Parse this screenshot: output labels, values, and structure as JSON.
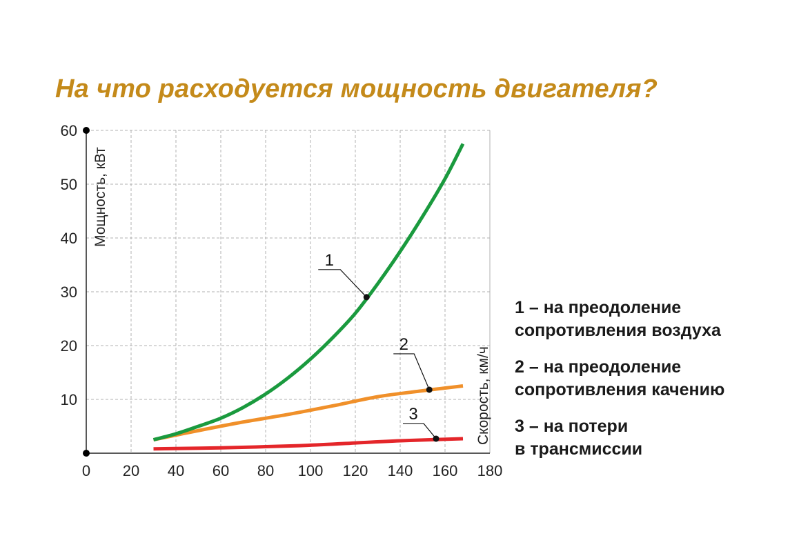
{
  "title": "На что расходуется мощность двигателя?",
  "colors": {
    "title": "#c48a1a",
    "curve_1": "#1a9a3e",
    "curve_2": "#f0902a",
    "curve_3": "#e4262a",
    "grid": "#b0b0b0",
    "axis": "#222222"
  },
  "chart_data": {
    "type": "line",
    "title": "",
    "xlabel": "Скорость, км/ч",
    "ylabel": "Мощность, кВт",
    "xlim": [
      0,
      180
    ],
    "ylim": [
      0,
      60
    ],
    "x_ticks": [
      "0",
      "20",
      "40",
      "60",
      "80",
      "100",
      "120",
      "140",
      "160",
      "180"
    ],
    "y_ticks": [
      "10",
      "20",
      "30",
      "40",
      "50",
      "60"
    ],
    "grid": true,
    "series": [
      {
        "name": "1",
        "color": "#1a9a3e",
        "x": [
          30,
          40,
          50,
          60,
          70,
          80,
          90,
          100,
          110,
          120,
          130,
          140,
          150,
          160,
          168
        ],
        "y": [
          2.5,
          3.6,
          5.0,
          6.5,
          8.5,
          11.0,
          14.0,
          17.5,
          21.5,
          26.0,
          31.5,
          37.5,
          44.0,
          51.0,
          57.5
        ],
        "marker": {
          "x": 125,
          "y": 29.0
        }
      },
      {
        "name": "2",
        "color": "#f0902a",
        "x": [
          30,
          50,
          70,
          90,
          110,
          130,
          150,
          168
        ],
        "y": [
          2.5,
          4.2,
          5.8,
          7.2,
          8.8,
          10.5,
          11.6,
          12.5
        ],
        "marker": {
          "x": 153,
          "y": 11.8
        }
      },
      {
        "name": "3",
        "color": "#e4262a",
        "x": [
          30,
          60,
          95,
          120,
          140,
          168
        ],
        "y": [
          0.8,
          1.0,
          1.4,
          1.9,
          2.3,
          2.7
        ],
        "marker": {
          "x": 156,
          "y": 2.7
        }
      }
    ]
  },
  "legend": [
    {
      "line1": "1 – на преодоление",
      "line2": "сопротивления воздуха"
    },
    {
      "line1": "2 – на преодоление",
      "line2": "сопротивления качению"
    },
    {
      "line1": "3 – на потери",
      "line2": "в трансмиссии"
    }
  ]
}
